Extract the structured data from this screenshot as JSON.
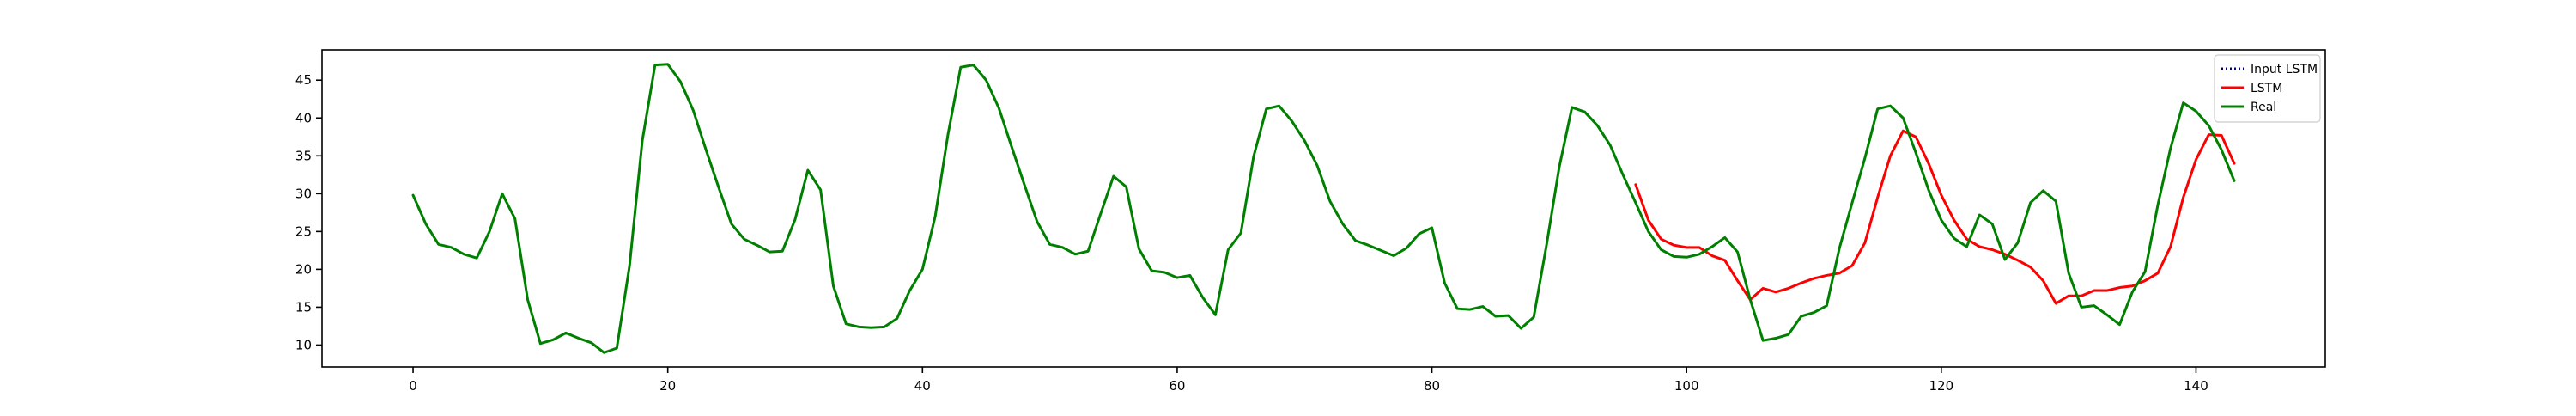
{
  "chart_data": {
    "type": "line",
    "title": "",
    "xlabel": "",
    "ylabel": "",
    "xlim": [
      -7.15,
      150.15
    ],
    "ylim": [
      7.1,
      49.0
    ],
    "grid": false,
    "legend_position": "top-right",
    "x_ticks": [
      0,
      20,
      40,
      60,
      80,
      100,
      120,
      140
    ],
    "x_tick_labels": [
      "0",
      "20",
      "40",
      "60",
      "80",
      "100",
      "120",
      "140"
    ],
    "y_ticks": [
      10,
      15,
      20,
      25,
      30,
      35,
      40,
      45
    ],
    "y_tick_labels": [
      "10",
      "15",
      "20",
      "25",
      "30",
      "35",
      "40",
      "45"
    ],
    "series": [
      {
        "name": "Input LSTM",
        "color": "#00008b",
        "style": "dotted",
        "x": [],
        "values": []
      },
      {
        "name": "LSTM",
        "color": "#ff0000",
        "style": "solid",
        "x": [
          96,
          97,
          98,
          99,
          100,
          101,
          102,
          103,
          104,
          105,
          106,
          107,
          108,
          109,
          110,
          111,
          112,
          113,
          114,
          115,
          116,
          117,
          118,
          119,
          120,
          121,
          122,
          123,
          124,
          125,
          126,
          127,
          128,
          129,
          130,
          131,
          132,
          133,
          134,
          135,
          136,
          137,
          138,
          139,
          140,
          141,
          142,
          143
        ],
        "values": [
          31.2,
          26.5,
          24.0,
          23.2,
          22.9,
          22.9,
          21.8,
          21.2,
          18.5,
          16.0,
          17.5,
          17.0,
          17.5,
          18.2,
          18.8,
          19.2,
          19.5,
          20.5,
          23.5,
          29.5,
          35.0,
          38.3,
          37.5,
          34.0,
          29.8,
          26.5,
          24.0,
          23.0,
          22.6,
          22.0,
          21.2,
          20.3,
          18.5,
          15.5,
          16.5,
          16.5,
          17.2,
          17.2,
          17.6,
          17.8,
          18.5,
          19.5,
          23.0,
          29.5,
          34.5,
          37.8,
          37.7,
          34.0
        ]
      },
      {
        "name": "Real",
        "color": "#008000",
        "style": "solid",
        "x": [
          0,
          1,
          2,
          3,
          4,
          5,
          6,
          7,
          8,
          9,
          10,
          11,
          12,
          13,
          14,
          15,
          16,
          17,
          18,
          19,
          20,
          21,
          22,
          23,
          24,
          25,
          26,
          27,
          28,
          29,
          30,
          31,
          32,
          33,
          34,
          35,
          36,
          37,
          38,
          39,
          40,
          41,
          42,
          43,
          44,
          45,
          46,
          47,
          48,
          49,
          50,
          51,
          52,
          53,
          54,
          55,
          56,
          57,
          58,
          59,
          60,
          61,
          62,
          63,
          64,
          65,
          66,
          67,
          68,
          69,
          70,
          71,
          72,
          73,
          74,
          75,
          76,
          77,
          78,
          79,
          80,
          81,
          82,
          83,
          84,
          85,
          86,
          87,
          88,
          89,
          90,
          91,
          92,
          93,
          94,
          95,
          96,
          97,
          98,
          99,
          100,
          101,
          102,
          103,
          104,
          105,
          106,
          107,
          108,
          109,
          110,
          111,
          112,
          113,
          114,
          115,
          116,
          117,
          118,
          119,
          120,
          121,
          122,
          123,
          124,
          125,
          126,
          127,
          128,
          129,
          130,
          131,
          132,
          133,
          134,
          135,
          136,
          137,
          138,
          139,
          140,
          141,
          142,
          143
        ],
        "values": [
          29.8,
          26.0,
          23.3,
          22.9,
          22.0,
          21.5,
          25.0,
          30.0,
          26.7,
          16.0,
          10.2,
          10.7,
          11.6,
          10.9,
          10.3,
          9.0,
          9.6,
          20.5,
          37.0,
          47.0,
          47.1,
          44.8,
          41.0,
          35.8,
          30.8,
          26.0,
          24.0,
          23.2,
          22.3,
          22.4,
          26.6,
          33.1,
          30.5,
          17.8,
          12.8,
          12.4,
          12.3,
          12.4,
          13.5,
          17.2,
          20.0,
          27.0,
          37.8,
          46.7,
          47.0,
          45.0,
          41.3,
          36.2,
          31.2,
          26.3,
          23.3,
          22.9,
          22.0,
          22.4,
          27.4,
          32.3,
          30.9,
          22.7,
          19.8,
          19.6,
          18.9,
          19.2,
          16.3,
          14.0,
          22.6,
          24.8,
          34.9,
          41.2,
          41.6,
          39.6,
          37.0,
          33.7,
          29.0,
          26.0,
          23.8,
          23.2,
          22.5,
          21.8,
          22.8,
          24.7,
          25.5,
          18.2,
          14.8,
          14.7,
          15.1,
          13.8,
          13.9,
          12.2,
          13.7,
          23.2,
          33.5,
          41.4,
          40.8,
          39.0,
          36.4,
          32.5,
          28.8,
          25.0,
          22.6,
          21.7,
          21.6,
          22.0,
          23.0,
          24.2,
          22.3,
          16.0,
          10.6,
          10.9,
          11.4,
          13.8,
          14.3,
          15.2,
          22.8,
          28.8,
          34.7,
          41.2,
          41.6,
          40.0,
          35.4,
          30.5,
          26.5,
          24.1,
          23.0,
          27.2,
          26.0,
          21.3,
          23.5,
          28.8,
          30.4,
          29.0,
          19.5,
          15.0,
          15.2,
          14.0,
          12.7,
          17.0,
          19.7,
          28.5,
          36.0,
          42.0,
          40.9,
          39.0,
          35.8,
          31.7
        ]
      }
    ]
  }
}
